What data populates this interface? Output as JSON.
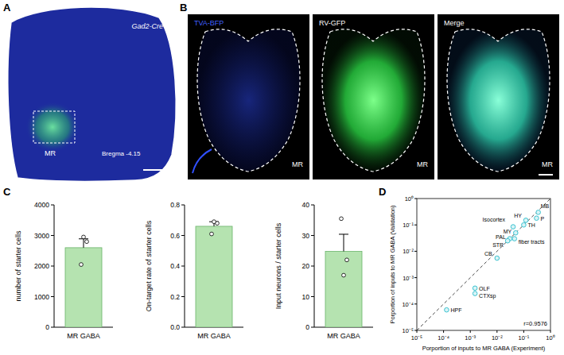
{
  "panels": {
    "A": {
      "label": "A",
      "genotype": "Gad2-Cre",
      "region": "MR",
      "bregma": "Bregma -4.15"
    },
    "B": {
      "label": "B",
      "images": [
        "TVA-BFP",
        "RV-GFP",
        "Merge"
      ],
      "region": "MR"
    },
    "C": {
      "label": "C"
    },
    "D": {
      "label": "D"
    }
  },
  "chart_data": [
    {
      "type": "bar",
      "y_label": "number of starter cells",
      "categories": [
        "MR GABA"
      ],
      "values": [
        2600
      ],
      "errors": [
        290
      ],
      "points": [
        [
          2050,
          2800,
          2950
        ]
      ],
      "color": "#b5e3b0",
      "ylim": [
        0,
        4000
      ],
      "yticks": [
        0,
        1000,
        2000,
        3000,
        4000
      ]
    },
    {
      "type": "bar",
      "y_label": "On-target rate of starter cells",
      "categories": [
        "MR GABA"
      ],
      "values": [
        0.66
      ],
      "errors": [
        0.03
      ],
      "points": [
        [
          0.61,
          0.68,
          0.69
        ]
      ],
      "color": "#b5e3b0",
      "ylim": [
        0,
        0.8
      ],
      "yticks": [
        {
          "value": 0,
          "label": "0.0"
        },
        0.2,
        0.4,
        0.6,
        0.8
      ]
    },
    {
      "type": "bar",
      "y_label": "Input neurons / starter cells",
      "categories": [
        "MR GABA"
      ],
      "values": [
        24.8
      ],
      "errors": [
        5.6
      ],
      "points": [
        [
          35.5,
          22,
          17
        ]
      ],
      "color": "#b5e3b0",
      "ylim": [
        0,
        40
      ],
      "yticks": [
        0,
        10,
        20,
        30,
        40
      ]
    },
    {
      "type": "scatter",
      "x_label": "Porportion of inputs to MR GABA (Experiment)",
      "y_label": "Porportion of inputs to MR GABA (Validation)",
      "log": true,
      "line_style": "dashed",
      "color": "#3cc3d0",
      "annotation": "r=0.9576",
      "labels": [
        "MB",
        "P",
        "HY",
        "TH",
        "Isocortex",
        "MY",
        "PAL",
        "STR",
        "fiber tracts",
        "CB",
        "OLF",
        "CTXsp",
        "HPF"
      ],
      "x": [
        0.35,
        0.3,
        0.12,
        0.1,
        0.04,
        0.05,
        0.03,
        0.025,
        0.045,
        0.01,
        0.0015,
        0.0015,
        0.00013
      ],
      "values": [
        0.3,
        0.18,
        0.15,
        0.1,
        0.085,
        0.05,
        0.03,
        0.025,
        0.03,
        0.0055,
        0.0004,
        0.00025,
        6e-05
      ],
      "xlim": [
        1e-05,
        1
      ],
      "ylim": [
        1e-05,
        1
      ],
      "xticks": [
        {
          "value": 1e-05,
          "label": "10⁻⁵"
        },
        {
          "value": 0.0001,
          "label": "10⁻⁴"
        },
        {
          "value": 0.001,
          "label": "10⁻³"
        },
        {
          "value": 0.01,
          "label": "10⁻²"
        },
        {
          "value": 0.1,
          "label": "10⁻¹"
        },
        {
          "value": 1,
          "label": "10⁰"
        }
      ],
      "yticks": [
        {
          "value": 1e-05,
          "label": "10⁻⁵"
        },
        {
          "value": 0.0001,
          "label": "10⁻⁴"
        },
        {
          "value": 0.001,
          "label": "10⁻³"
        },
        {
          "value": 0.01,
          "label": "10⁻²"
        },
        {
          "value": 0.1,
          "label": "10⁻¹"
        },
        {
          "value": 1,
          "label": "10⁰"
        }
      ]
    }
  ]
}
